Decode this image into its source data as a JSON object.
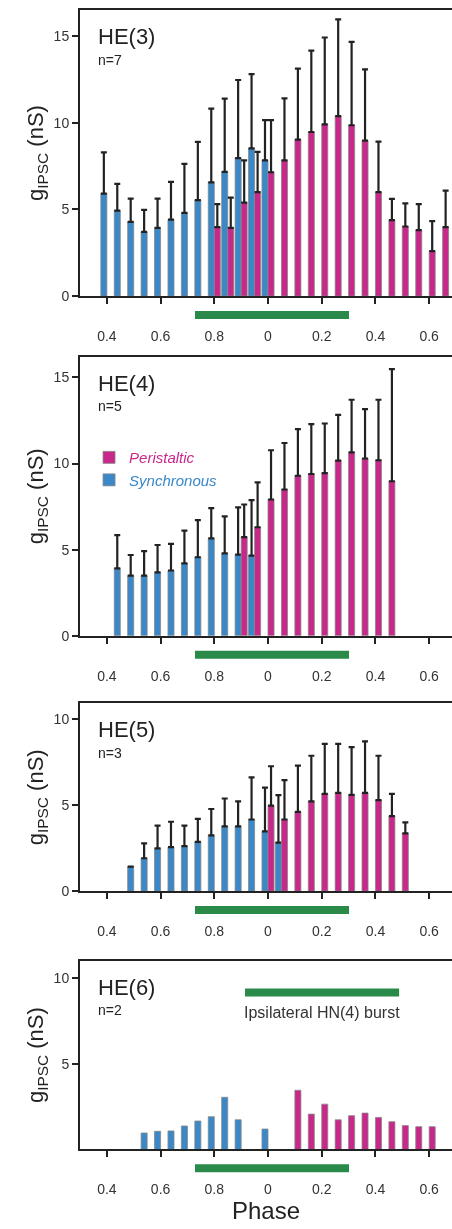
{
  "chart_data": [
    {
      "type": "bar",
      "annotations": [
        "HE(3)",
        "n=7"
      ],
      "ylabel": "g$_{IPSC}$ (nS)",
      "categories": [
        "0.4",
        null,
        null,
        null,
        "0.6",
        null,
        null,
        null,
        "0.8",
        null,
        null,
        null,
        "0",
        null,
        null,
        null,
        "0.2",
        null,
        null,
        null,
        "0.4",
        null,
        null,
        null,
        "0.6",
        null
      ],
      "ylim": [
        0,
        16.5
      ],
      "yticks": [
        0,
        5,
        10,
        15
      ],
      "series": [
        {
          "color": "#3a88c8",
          "values": [
            5.91,
            4.93,
            4.28,
            3.7,
            3.93,
            4.41,
            4.8,
            5.53,
            6.56,
            7.16,
            7.95,
            8.52,
            7.83,
            null,
            null,
            null,
            null,
            null,
            null,
            null,
            null,
            null,
            null,
            null,
            null,
            null
          ],
          "errors": [
            [
              5.91,
              8.29
            ],
            [
              4.93,
              6.47
            ],
            [
              4.28,
              5.62
            ],
            [
              3.7,
              4.97
            ],
            [
              3.93,
              5.62
            ],
            [
              4.41,
              6.58
            ],
            [
              4.8,
              7.62
            ],
            [
              5.53,
              8.89
            ],
            [
              6.56,
              10.81
            ],
            [
              7.16,
              11.38
            ],
            [
              7.95,
              12.46
            ],
            [
              8.52,
              12.8
            ],
            [
              7.83,
              10.15
            ],
            null,
            null,
            null,
            null,
            null,
            null,
            null,
            null,
            null,
            null,
            null,
            null,
            null
          ]
        },
        {
          "color": "#c8288a",
          "values": [
            null,
            null,
            null,
            null,
            null,
            null,
            null,
            null,
            3.97,
            3.93,
            5.39,
            5.99,
            7.14,
            7.83,
            9.02,
            9.46,
            9.9,
            10.38,
            9.85,
            8.96,
            5.99,
            4.38,
            4.01,
            3.8,
            2.59,
            3.97
          ],
          "errors": [
            null,
            null,
            null,
            null,
            null,
            null,
            null,
            null,
            [
              3.97,
              5.3
            ],
            [
              3.93,
              5.68
            ],
            [
              5.39,
              7.83
            ],
            [
              5.99,
              8.31
            ],
            [
              7.14,
              10.15
            ],
            [
              7.83,
              11.4
            ],
            [
              9.02,
              13.11
            ],
            [
              9.46,
              14.15
            ],
            [
              9.9,
              14.91
            ],
            [
              10.38,
              15.95
            ],
            [
              9.85,
              14.66
            ],
            [
              8.96,
              13.07
            ],
            [
              5.99,
              8.91
            ],
            [
              4.38,
              5.6
            ],
            [
              4.01,
              5.34
            ],
            [
              3.8,
              5.3
            ],
            [
              2.59,
              4.32
            ],
            [
              3.97,
              6.08
            ]
          ]
        }
      ]
    },
    {
      "type": "bar",
      "annotations": [
        "HE(4)",
        "n=5"
      ],
      "ylabel": "g$_{IPSC}$ (nS)",
      "categories": [
        "0.4",
        null,
        null,
        null,
        "0.6",
        null,
        null,
        null,
        "0.8",
        null,
        null,
        null,
        "0",
        null,
        null,
        null,
        "0.2",
        null,
        null,
        null,
        "0.4",
        null,
        null,
        null,
        "0.6",
        null
      ],
      "ylim": [
        0,
        16.2
      ],
      "yticks": [
        0,
        5,
        10,
        15
      ],
      "legend": "top left",
      "series": [
        {
          "name": "Synchronous",
          "color": "#3a88c8",
          "values": [
            null,
            3.91,
            3.49,
            3.49,
            3.68,
            3.79,
            4.21,
            4.56,
            5.65,
            4.79,
            4.71,
            4.66,
            null,
            null,
            null,
            null,
            null,
            null,
            null,
            null,
            null,
            null,
            null,
            null,
            null,
            null
          ],
          "errors": [
            null,
            [
              3.91,
              5.84
            ],
            [
              3.49,
              4.69
            ],
            [
              3.49,
              4.92
            ],
            [
              3.68,
              5.27
            ],
            [
              3.79,
              5.34
            ],
            [
              4.21,
              6.11
            ],
            [
              4.56,
              6.72
            ],
            [
              5.65,
              7.41
            ],
            [
              4.79,
              6.93
            ],
            [
              4.71,
              7.45
            ],
            [
              4.66,
              7.87
            ],
            null,
            null,
            null,
            null,
            null,
            null,
            null,
            null,
            null,
            null,
            null,
            null,
            null,
            null
          ]
        },
        {
          "name": "Peristaltic",
          "color": "#c8288a",
          "values": [
            null,
            null,
            null,
            null,
            null,
            null,
            null,
            null,
            null,
            null,
            5.73,
            6.3,
            7.91,
            8.49,
            9.29,
            9.39,
            9.44,
            10.17,
            10.65,
            10.29,
            10.19,
            8.97,
            null,
            null,
            null,
            null
          ],
          "errors": [
            null,
            null,
            null,
            null,
            null,
            null,
            null,
            null,
            null,
            null,
            [
              5.73,
              7.62
            ],
            [
              6.3,
              8.91
            ],
            [
              7.91,
              10.77
            ],
            [
              8.49,
              11.19
            ],
            [
              9.29,
              11.99
            ],
            [
              9.39,
              12.28
            ],
            [
              9.44,
              12.32
            ],
            [
              10.17,
              12.82
            ],
            [
              10.65,
              13.7
            ],
            [
              10.29,
              13.16
            ],
            [
              10.19,
              13.7
            ],
            [
              8.97,
              15.48
            ],
            null,
            null,
            null,
            null
          ]
        }
      ]
    },
    {
      "type": "bar",
      "annotations": [
        "HE(5)",
        "n=3"
      ],
      "ylabel": "g$_{IPSC}$ (nS)",
      "categories": [
        "0.4",
        null,
        null,
        null,
        "0.6",
        null,
        null,
        null,
        "0.8",
        null,
        null,
        null,
        "0",
        null,
        null,
        null,
        "0.2",
        null,
        null,
        null,
        "0.4",
        null,
        null,
        null,
        "0.6",
        null
      ],
      "ylim": [
        0,
        10.9
      ],
      "yticks": [
        0,
        5,
        10
      ],
      "series": [
        {
          "color": "#3a88c8",
          "values": [
            null,
            null,
            1.43,
            1.91,
            2.48,
            2.56,
            2.61,
            2.86,
            3.24,
            3.76,
            3.76,
            4.16,
            3.47,
            2.82,
            null,
            null,
            null,
            null,
            null,
            null,
            null,
            null,
            null,
            null,
            null,
            null
          ],
          "errors": [
            null,
            null,
            null,
            [
              1.91,
              2.77
            ],
            [
              2.48,
              3.8
            ],
            [
              2.56,
              4.03
            ],
            [
              2.61,
              3.8
            ],
            [
              2.86,
              4.2
            ],
            [
              3.24,
              4.77
            ],
            [
              3.76,
              5.38
            ],
            [
              3.76,
              5.21
            ],
            [
              4.16,
              6.6
            ],
            [
              3.47,
              6.01
            ],
            [
              2.82,
              5.57
            ],
            null,
            null,
            null,
            null,
            null,
            null,
            null,
            null,
            null,
            null,
            null,
            null
          ]
        },
        {
          "color": "#c8288a",
          "values": [
            null,
            null,
            null,
            null,
            null,
            null,
            null,
            null,
            null,
            null,
            null,
            null,
            4.96,
            4.16,
            4.6,
            5.21,
            5.65,
            5.71,
            5.59,
            5.71,
            5.29,
            4.35,
            3.36,
            null,
            null,
            null
          ],
          "errors": [
            null,
            null,
            null,
            null,
            null,
            null,
            null,
            null,
            null,
            null,
            null,
            null,
            [
              4.96,
              7.25
            ],
            [
              4.16,
              6.45
            ],
            [
              4.6,
              7.29
            ],
            [
              5.21,
              7.86
            ],
            [
              5.65,
              8.55
            ],
            [
              5.71,
              8.55
            ],
            [
              5.59,
              8.36
            ],
            [
              5.71,
              8.7
            ],
            [
              5.29,
              7.86
            ],
            [
              4.35,
              5.65
            ],
            [
              3.36,
              3.99
            ],
            null,
            null,
            null
          ]
        }
      ]
    },
    {
      "type": "bar",
      "annotations": [
        "HE(6)",
        "n=2",
        "Ipsilateral HN(4) burst"
      ],
      "ylabel": "g$_{IPSC}$ (nS)",
      "xlabel": "Phase",
      "categories": [
        "0.4",
        null,
        null,
        null,
        "0.6",
        null,
        null,
        null,
        "0.8",
        null,
        null,
        null,
        "0",
        null,
        null,
        null,
        "0.2",
        null,
        null,
        null,
        "0.4",
        null,
        null,
        null,
        "0.6",
        null
      ],
      "ylim": [
        0,
        11
      ],
      "yticks": [
        5,
        10
      ],
      "series": [
        {
          "color": "#3a88c8",
          "values": [
            null,
            null,
            null,
            0.96,
            1.06,
            1.08,
            1.37,
            1.66,
            1.91,
            3.04,
            1.73,
            null,
            1.19,
            null,
            null,
            null,
            null,
            null,
            null,
            null,
            null,
            null,
            null,
            null,
            null,
            null
          ]
        },
        {
          "color": "#c8288a",
          "values": [
            null,
            null,
            null,
            null,
            null,
            null,
            null,
            null,
            null,
            null,
            null,
            null,
            null,
            null,
            3.45,
            2.06,
            2.64,
            1.73,
            1.97,
            2.12,
            1.87,
            1.62,
            1.39,
            1.33,
            1.33,
            null
          ]
        }
      ]
    }
  ]
}
